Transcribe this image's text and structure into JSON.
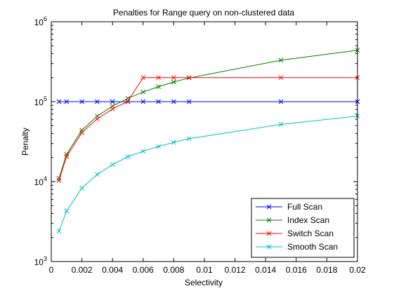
{
  "chart_data": {
    "type": "line",
    "title": "Penalties for Range query on non-clustered data",
    "xlabel": "Selectivity",
    "ylabel": "Penalty",
    "xlim": [
      0,
      0.02
    ],
    "ylim": [
      1000,
      1000000
    ],
    "yscale": "log",
    "grid": false,
    "legend_position": "bottom-right",
    "x_ticks": [
      0,
      0.002,
      0.004,
      0.006,
      0.008,
      0.01,
      0.012,
      0.014,
      0.016,
      0.018,
      0.02
    ],
    "x_tick_labels": [
      "0",
      "0.002",
      "0.004",
      "0.006",
      "0.008",
      "0.01",
      "0.012",
      "0.014",
      "0.016",
      "0.018",
      "0.02"
    ],
    "y_ticks": [
      1000,
      10000,
      100000,
      1000000
    ],
    "y_tick_bases": [
      "10",
      "10",
      "10",
      "10"
    ],
    "y_tick_exponents": [
      "3",
      "4",
      "5",
      "6"
    ],
    "series": [
      {
        "name": "Full Scan",
        "color": "#0000ff",
        "x": [
          0.0005,
          0.001,
          0.002,
          0.003,
          0.004,
          0.005,
          0.006,
          0.007,
          0.008,
          0.009,
          0.015,
          0.02
        ],
        "y": [
          100000,
          100000,
          100000,
          100000,
          100000,
          100000,
          100000,
          100000,
          100000,
          100000,
          100000,
          100000
        ]
      },
      {
        "name": "Index Scan",
        "color": "#008000",
        "x": [
          0.0005,
          0.001,
          0.002,
          0.003,
          0.004,
          0.005,
          0.006,
          0.007,
          0.008,
          0.009,
          0.015,
          0.02
        ],
        "y": [
          11000,
          22000,
          44000,
          66000,
          88000,
          110000,
          132000,
          154000,
          176000,
          198000,
          330000,
          440000
        ]
      },
      {
        "name": "Switch Scan",
        "color": "#ff0000",
        "x": [
          0.0005,
          0.001,
          0.002,
          0.003,
          0.004,
          0.005,
          0.006,
          0.007,
          0.008,
          0.009,
          0.015,
          0.02
        ],
        "y": [
          10300,
          20600,
          41000,
          61000,
          81000,
          101000,
          200000,
          200000,
          200000,
          200000,
          200000,
          200000
        ]
      },
      {
        "name": "Smooth Scan",
        "color": "#00bfbf",
        "x": [
          0.0005,
          0.001,
          0.002,
          0.003,
          0.004,
          0.005,
          0.006,
          0.007,
          0.008,
          0.009,
          0.015,
          0.02
        ],
        "y": [
          2400,
          4300,
          8300,
          12300,
          16300,
          20500,
          24000,
          27500,
          31000,
          34500,
          52000,
          66000
        ]
      }
    ]
  }
}
